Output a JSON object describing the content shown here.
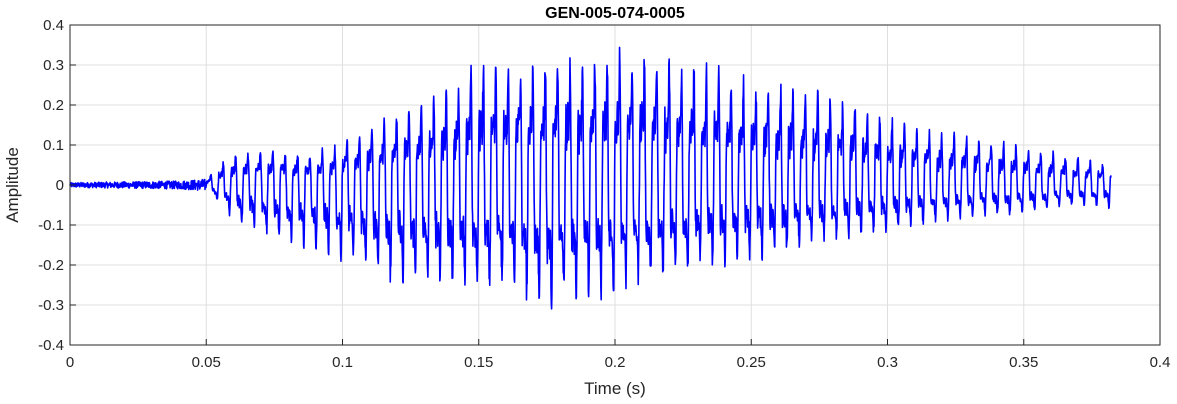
{
  "chart_data": {
    "type": "line",
    "title": "GEN-005-074-0005",
    "xlabel": "Time (s)",
    "ylabel": "Amplitude",
    "xlim": [
      0,
      0.4
    ],
    "ylim": [
      -0.4,
      0.4
    ],
    "grid": true,
    "x_ticks": [
      {
        "value": 0,
        "label": "0"
      },
      {
        "value": 0.05,
        "label": "0.05"
      },
      {
        "value": 0.1,
        "label": "0.1"
      },
      {
        "value": 0.15,
        "label": "0.15"
      },
      {
        "value": 0.2,
        "label": "0.2"
      },
      {
        "value": 0.25,
        "label": "0.25"
      },
      {
        "value": 0.3,
        "label": "0.3"
      },
      {
        "value": 0.35,
        "label": "0.35"
      },
      {
        "value": 0.4,
        "label": "0.4"
      }
    ],
    "y_ticks": [
      {
        "value": -0.4,
        "label": "-0.4"
      },
      {
        "value": -0.3,
        "label": "-0.3"
      },
      {
        "value": -0.2,
        "label": "-0.2"
      },
      {
        "value": -0.1,
        "label": "-0.1"
      },
      {
        "value": 0,
        "label": "0"
      },
      {
        "value": 0.1,
        "label": "0.1"
      },
      {
        "value": 0.2,
        "label": "0.2"
      },
      {
        "value": 0.3,
        "label": "0.3"
      },
      {
        "value": 0.4,
        "label": "0.4"
      }
    ],
    "series": [
      {
        "color": "#0000ff",
        "x_end": 0.382,
        "envelope_pos": [
          [
            0,
            0.006
          ],
          [
            0.04,
            0.01
          ],
          [
            0.05,
            0.015
          ],
          [
            0.055,
            0.06
          ],
          [
            0.06,
            0.08
          ],
          [
            0.07,
            0.09
          ],
          [
            0.09,
            0.085
          ],
          [
            0.1,
            0.11
          ],
          [
            0.12,
            0.19
          ],
          [
            0.13,
            0.22
          ],
          [
            0.14,
            0.25
          ],
          [
            0.15,
            0.31
          ],
          [
            0.17,
            0.33
          ],
          [
            0.2,
            0.34
          ],
          [
            0.21,
            0.35
          ],
          [
            0.23,
            0.31
          ],
          [
            0.25,
            0.27
          ],
          [
            0.27,
            0.25
          ],
          [
            0.29,
            0.2
          ],
          [
            0.31,
            0.15
          ],
          [
            0.33,
            0.13
          ],
          [
            0.35,
            0.1
          ],
          [
            0.37,
            0.07
          ],
          [
            0.382,
            0.05
          ]
        ],
        "envelope_neg": [
          [
            0,
            -0.006
          ],
          [
            0.04,
            -0.012
          ],
          [
            0.05,
            -0.015
          ],
          [
            0.055,
            -0.05
          ],
          [
            0.06,
            -0.09
          ],
          [
            0.07,
            -0.12
          ],
          [
            0.1,
            -0.19
          ],
          [
            0.11,
            -0.22
          ],
          [
            0.12,
            -0.26
          ],
          [
            0.14,
            -0.25
          ],
          [
            0.16,
            -0.27
          ],
          [
            0.175,
            -0.32
          ],
          [
            0.18,
            -0.3
          ],
          [
            0.2,
            -0.28
          ],
          [
            0.22,
            -0.23
          ],
          [
            0.24,
            -0.2
          ],
          [
            0.26,
            -0.18
          ],
          [
            0.28,
            -0.14
          ],
          [
            0.3,
            -0.12
          ],
          [
            0.32,
            -0.09
          ],
          [
            0.34,
            -0.08
          ],
          [
            0.36,
            -0.06
          ],
          [
            0.37,
            -0.05
          ],
          [
            0.382,
            -0.06
          ]
        ]
      }
    ]
  }
}
